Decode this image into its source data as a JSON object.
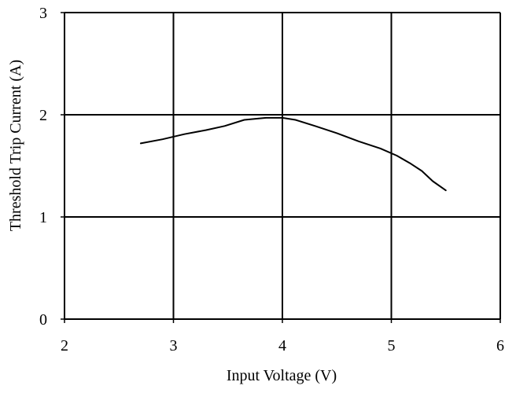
{
  "chart_data": {
    "type": "line",
    "title": "",
    "xlabel": "Input Voltage (V)",
    "ylabel": "Threshold Trip Current (A)",
    "xlim": [
      2,
      6
    ],
    "ylim": [
      0,
      3
    ],
    "x_ticks": [
      2,
      3,
      4,
      5,
      6
    ],
    "y_ticks": [
      0,
      1,
      2,
      3
    ],
    "x_tick_labels": [
      "2",
      "3",
      "4",
      "5",
      "6"
    ],
    "y_tick_labels": [
      "0",
      "1",
      "2",
      "3"
    ],
    "grid": true,
    "legend": "none",
    "series": [
      {
        "color": "#000000",
        "x": [
          2.7,
          2.9,
          3.1,
          3.3,
          3.47,
          3.65,
          3.85,
          4.0,
          4.12,
          4.3,
          4.5,
          4.7,
          4.9,
          5.05,
          5.18,
          5.28,
          5.38,
          5.5
        ],
        "y": [
          1.72,
          1.76,
          1.81,
          1.85,
          1.89,
          1.95,
          1.97,
          1.97,
          1.95,
          1.89,
          1.82,
          1.74,
          1.67,
          1.6,
          1.52,
          1.45,
          1.35,
          1.26
        ]
      }
    ]
  }
}
